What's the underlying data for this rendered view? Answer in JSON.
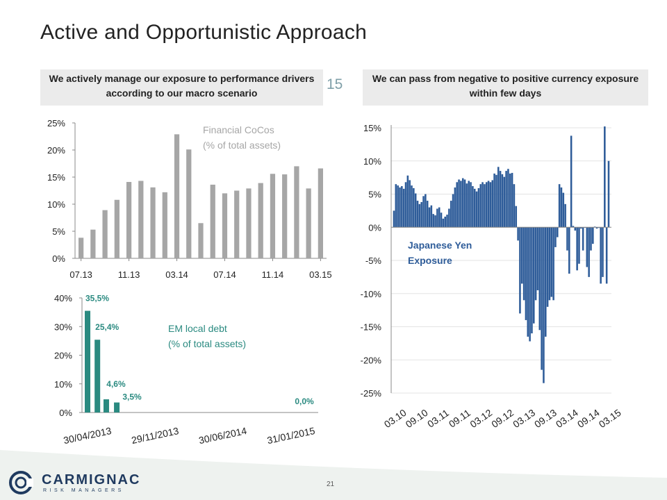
{
  "title": "Active and Opportunistic Approach",
  "header_left": "We actively manage our exposure to performance drivers according to our macro scenario",
  "header_right": "We can pass from negative to positive currency exposure within few days",
  "stray_text": "15",
  "page_number": "21",
  "logo": {
    "name": "CARMIGNAC",
    "tagline": "RISK MANAGERS"
  },
  "colors": {
    "gray_bar": "#a6a6a6",
    "teal": "#2a8a80",
    "blue": "#2e5c99",
    "teal_text": "#2a8a80",
    "blue_text": "#2e5c99"
  },
  "chart_data": [
    {
      "id": "cocos",
      "type": "bar",
      "annotation_lines": [
        "Financial CoCos",
        "(% of total assets)"
      ],
      "yticks": [
        "0%",
        "5%",
        "10%",
        "15%",
        "20%",
        "25%"
      ],
      "ylim": [
        0,
        25
      ],
      "xtick_labels": [
        "07.13",
        "11.13",
        "03.14",
        "07.14",
        "11.14",
        "03.15"
      ],
      "values": [
        3.8,
        5.3,
        8.9,
        10.8,
        14.1,
        14.3,
        13.1,
        12.2,
        22.9,
        20.1,
        6.5,
        13.6,
        12.0,
        12.5,
        12.9,
        13.9,
        15.6,
        15.5,
        17.0,
        12.9,
        16.6
      ],
      "grid": false
    },
    {
      "id": "em_debt",
      "type": "bar",
      "annotation_lines": [
        "EM local debt",
        "(% of total assets)"
      ],
      "yticks": [
        "0%",
        "10%",
        "20%",
        "30%",
        "40%"
      ],
      "ylim": [
        0,
        40
      ],
      "xtick_labels": [
        "30/04/2013",
        "29/11/2013",
        "30/06/2014",
        "31/01/2015"
      ],
      "x": [
        "2013-04-30",
        "2013-05-31",
        "2013-06-28",
        "2013-07-31",
        "2015-03-31"
      ],
      "values": [
        35.5,
        25.4,
        4.6,
        3.5,
        0.0
      ],
      "data_labels": [
        "35,5%",
        "25,4%",
        "4,6%",
        "3,5%",
        "0,0%"
      ],
      "grid": false
    },
    {
      "id": "jpy",
      "type": "bar",
      "annotation_lines": [
        "Japanese Yen",
        "Exposure"
      ],
      "yticks": [
        "15%",
        "10%",
        "5%",
        "0%",
        "-5%",
        "-10%",
        "-15%",
        "-20%",
        "-25%"
      ],
      "ylim": [
        -25,
        15
      ],
      "xtick_labels": [
        "03.10",
        "09.10",
        "03.11",
        "09.11",
        "03.12",
        "09.12",
        "03.13",
        "09.13",
        "03.14",
        "09.14",
        "03.15"
      ],
      "x_range": [
        "2010-03",
        "2015-03"
      ],
      "values": [
        2.5,
        6.5,
        6.3,
        6.0,
        6.2,
        5.8,
        6.8,
        7.8,
        7.1,
        6.3,
        5.9,
        5.1,
        4.0,
        3.5,
        3.8,
        4.7,
        5.0,
        4.0,
        3.0,
        3.3,
        2.0,
        1.8,
        2.8,
        3.0,
        2.2,
        1.3,
        1.6,
        1.9,
        2.8,
        4.0,
        5.0,
        6.0,
        6.8,
        7.2,
        7.0,
        7.4,
        7.2,
        6.6,
        7.0,
        6.8,
        6.2,
        5.8,
        5.4,
        5.9,
        6.5,
        6.8,
        6.5,
        6.8,
        7.0,
        6.8,
        7.1,
        8.1,
        7.9,
        9.1,
        8.5,
        8.0,
        7.6,
        8.5,
        8.8,
        8.1,
        8.2,
        6.5,
        3.2,
        -2.0,
        -13.0,
        -8.5,
        -11.0,
        -14.0,
        -16.5,
        -17.2,
        -16.0,
        -14.5,
        -11.0,
        -9.5,
        -15.5,
        -21.5,
        -23.5,
        -16.5,
        -12.0,
        -11.0,
        -10.5,
        -11.0,
        -3.0,
        -1.5,
        6.5,
        6.0,
        5.2,
        3.5,
        -3.5,
        -7.0,
        13.8,
        0.2,
        -0.5,
        -6.5,
        -5.5,
        -0.2,
        -3.5,
        0.0,
        -6.0,
        -7.5,
        -3.5,
        -2.5,
        0.1,
        -0.2,
        -0.1,
        -8.5,
        -7.5,
        15.2,
        -8.5,
        10.0
      ],
      "grid": true
    }
  ]
}
